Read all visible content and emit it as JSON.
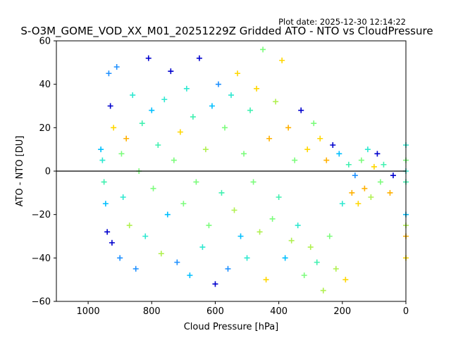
{
  "chart_data": {
    "type": "scatter",
    "plot_date": "Plot date: 2025-12-30 12:14:22",
    "title": "S-O3M_GOME_VOD_XX_M01_20251229Z Gridded ATO - NTO vs CloudPressure",
    "xlabel": "Cloud Pressure [hPa]",
    "ylabel": "ATO - NTO [DU]",
    "xlim": [
      1100,
      0
    ],
    "ylim": [
      -60,
      60
    ],
    "x_inverted": true,
    "xticks": [
      1000,
      800,
      600,
      400,
      200,
      0
    ],
    "xtick_labels": [
      "1000",
      "800",
      "600",
      "400",
      "200",
      "0"
    ],
    "yticks": [
      60,
      40,
      20,
      0,
      -20,
      -40,
      -60
    ],
    "ytick_labels": [
      "60",
      "40",
      "20",
      "0",
      "−20",
      "−40",
      "−60"
    ],
    "reference_line_y": 0,
    "marker": "+",
    "grid": false,
    "colors": [
      "#0000cd",
      "#1e90ff",
      "#00bfff",
      "#2ee8d0",
      "#40f0b0",
      "#7cfc7c",
      "#b0f050",
      "#ffd700",
      "#ffb000"
    ],
    "points": [
      {
        "x": 960,
        "y": 10,
        "c": 2
      },
      {
        "x": 955,
        "y": 5,
        "c": 3
      },
      {
        "x": 950,
        "y": -5,
        "c": 4
      },
      {
        "x": 945,
        "y": -15,
        "c": 2
      },
      {
        "x": 940,
        "y": -28,
        "c": 0
      },
      {
        "x": 935,
        "y": 45,
        "c": 1
      },
      {
        "x": 930,
        "y": 30,
        "c": 0
      },
      {
        "x": 925,
        "y": -33,
        "c": 0
      },
      {
        "x": 920,
        "y": 20,
        "c": 7
      },
      {
        "x": 910,
        "y": 48,
        "c": 1
      },
      {
        "x": 900,
        "y": -40,
        "c": 1
      },
      {
        "x": 895,
        "y": 8,
        "c": 5
      },
      {
        "x": 890,
        "y": -12,
        "c": 3
      },
      {
        "x": 880,
        "y": 15,
        "c": 8
      },
      {
        "x": 870,
        "y": -25,
        "c": 6
      },
      {
        "x": 860,
        "y": 35,
        "c": 3
      },
      {
        "x": 850,
        "y": -45,
        "c": 1
      },
      {
        "x": 840,
        "y": 0,
        "c": 5
      },
      {
        "x": 830,
        "y": 22,
        "c": 4
      },
      {
        "x": 820,
        "y": -30,
        "c": 3
      },
      {
        "x": 810,
        "y": 52,
        "c": 0
      },
      {
        "x": 800,
        "y": 28,
        "c": 2
      },
      {
        "x": 795,
        "y": -8,
        "c": 5
      },
      {
        "x": 780,
        "y": 12,
        "c": 4
      },
      {
        "x": 770,
        "y": -38,
        "c": 6
      },
      {
        "x": 760,
        "y": 33,
        "c": 3
      },
      {
        "x": 750,
        "y": -20,
        "c": 2
      },
      {
        "x": 740,
        "y": 46,
        "c": 0
      },
      {
        "x": 730,
        "y": 5,
        "c": 5
      },
      {
        "x": 720,
        "y": -42,
        "c": 1
      },
      {
        "x": 710,
        "y": 18,
        "c": 7
      },
      {
        "x": 700,
        "y": -15,
        "c": 5
      },
      {
        "x": 690,
        "y": 38,
        "c": 3
      },
      {
        "x": 680,
        "y": -48,
        "c": 2
      },
      {
        "x": 670,
        "y": 25,
        "c": 4
      },
      {
        "x": 660,
        "y": -5,
        "c": 5
      },
      {
        "x": 650,
        "y": 52,
        "c": 0
      },
      {
        "x": 640,
        "y": -35,
        "c": 3
      },
      {
        "x": 630,
        "y": 10,
        "c": 6
      },
      {
        "x": 620,
        "y": -25,
        "c": 5
      },
      {
        "x": 610,
        "y": 30,
        "c": 2
      },
      {
        "x": 600,
        "y": -52,
        "c": 0
      },
      {
        "x": 590,
        "y": 40,
        "c": 1
      },
      {
        "x": 580,
        "y": -10,
        "c": 4
      },
      {
        "x": 570,
        "y": 20,
        "c": 5
      },
      {
        "x": 560,
        "y": -45,
        "c": 1
      },
      {
        "x": 550,
        "y": 35,
        "c": 3
      },
      {
        "x": 540,
        "y": -18,
        "c": 6
      },
      {
        "x": 530,
        "y": 45,
        "c": 7
      },
      {
        "x": 520,
        "y": -30,
        "c": 2
      },
      {
        "x": 510,
        "y": 8,
        "c": 5
      },
      {
        "x": 500,
        "y": -40,
        "c": 3
      },
      {
        "x": 490,
        "y": 28,
        "c": 4
      },
      {
        "x": 480,
        "y": -5,
        "c": 5
      },
      {
        "x": 470,
        "y": 38,
        "c": 7
      },
      {
        "x": 460,
        "y": -28,
        "c": 6
      },
      {
        "x": 450,
        "y": 56,
        "c": 5
      },
      {
        "x": 440,
        "y": -50,
        "c": 7
      },
      {
        "x": 430,
        "y": 15,
        "c": 8
      },
      {
        "x": 420,
        "y": -22,
        "c": 5
      },
      {
        "x": 410,
        "y": 32,
        "c": 6
      },
      {
        "x": 400,
        "y": -12,
        "c": 4
      },
      {
        "x": 390,
        "y": 51,
        "c": 7
      },
      {
        "x": 380,
        "y": -40,
        "c": 2
      },
      {
        "x": 370,
        "y": 20,
        "c": 8
      },
      {
        "x": 360,
        "y": -32,
        "c": 6
      },
      {
        "x": 350,
        "y": 5,
        "c": 5
      },
      {
        "x": 340,
        "y": -25,
        "c": 3
      },
      {
        "x": 330,
        "y": 28,
        "c": 0
      },
      {
        "x": 320,
        "y": -48,
        "c": 5
      },
      {
        "x": 310,
        "y": 10,
        "c": 7
      },
      {
        "x": 300,
        "y": -35,
        "c": 6
      },
      {
        "x": 290,
        "y": 22,
        "c": 5
      },
      {
        "x": 280,
        "y": -42,
        "c": 4
      },
      {
        "x": 270,
        "y": 15,
        "c": 7
      },
      {
        "x": 260,
        "y": -55,
        "c": 6
      },
      {
        "x": 250,
        "y": 5,
        "c": 8
      },
      {
        "x": 240,
        "y": -30,
        "c": 5
      },
      {
        "x": 230,
        "y": 12,
        "c": 0
      },
      {
        "x": 220,
        "y": -45,
        "c": 6
      },
      {
        "x": 210,
        "y": 8,
        "c": 2
      },
      {
        "x": 200,
        "y": -15,
        "c": 3
      },
      {
        "x": 190,
        "y": -50,
        "c": 7
      },
      {
        "x": 180,
        "y": 3,
        "c": 4
      },
      {
        "x": 170,
        "y": -10,
        "c": 8
      },
      {
        "x": 160,
        "y": -2,
        "c": 1
      },
      {
        "x": 150,
        "y": -15,
        "c": 7
      },
      {
        "x": 140,
        "y": 5,
        "c": 5
      },
      {
        "x": 130,
        "y": -8,
        "c": 8
      },
      {
        "x": 120,
        "y": 10,
        "c": 3
      },
      {
        "x": 110,
        "y": -12,
        "c": 6
      },
      {
        "x": 100,
        "y": 2,
        "c": 7
      },
      {
        "x": 90,
        "y": 8,
        "c": 0
      },
      {
        "x": 80,
        "y": -5,
        "c": 5
      },
      {
        "x": 70,
        "y": 3,
        "c": 4
      },
      {
        "x": 50,
        "y": -10,
        "c": 8
      },
      {
        "x": 40,
        "y": -2,
        "c": 0
      },
      {
        "x": 0,
        "y": 12,
        "c": 3
      },
      {
        "x": 0,
        "y": 5,
        "c": 5
      },
      {
        "x": 0,
        "y": -5,
        "c": 4
      },
      {
        "x": 0,
        "y": -20,
        "c": 2
      },
      {
        "x": 0,
        "y": -30,
        "c": 8
      },
      {
        "x": 0,
        "y": -40,
        "c": 7
      },
      {
        "x": 0,
        "y": -25,
        "c": 6
      },
      {
        "x": 0,
        "y": 0,
        "c": 3
      }
    ]
  }
}
